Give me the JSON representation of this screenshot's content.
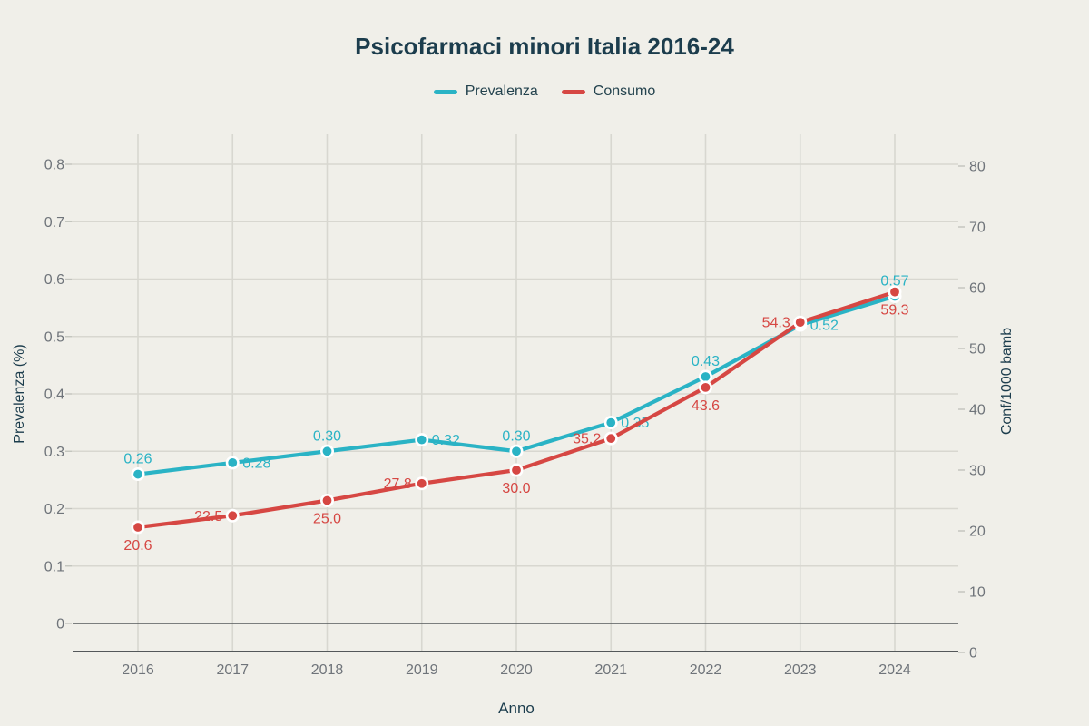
{
  "page": {
    "background_color": "#f0efe9",
    "accent_dark": "#1c3d4d",
    "tick_text_color": "#6f747a",
    "gridline_color": "#d8d7d0",
    "axis_line_color": "#54585a"
  },
  "chart_data": {
    "type": "line",
    "title": "Psicofarmaci minori Italia 2016-24",
    "xlabel": "Anno",
    "categories": [
      "2016",
      "2017",
      "2018",
      "2019",
      "2020",
      "2021",
      "2022",
      "2023",
      "2024"
    ],
    "grid": true,
    "legend_position": "top-center",
    "left_axis": {
      "label": "Prevalenza (%)",
      "range": [
        0,
        0.8
      ],
      "ticks": [
        0,
        0.1,
        0.2,
        0.3,
        0.4,
        0.5,
        0.6,
        0.7,
        0.8
      ],
      "tick_labels": [
        "0",
        "0.1",
        "0.2",
        "0.3",
        "0.4",
        "0.5",
        "0.6",
        "0.7",
        "0.8"
      ]
    },
    "right_axis": {
      "label": "Conf/1000 bamb",
      "range": [
        0,
        80
      ],
      "ticks": [
        0,
        10,
        20,
        30,
        40,
        50,
        60,
        70,
        80
      ],
      "tick_labels": [
        "0",
        "10",
        "20",
        "30",
        "40",
        "50",
        "60",
        "70",
        "80"
      ]
    },
    "series": [
      {
        "name": "Prevalenza",
        "axis": "left",
        "color": "#2ab3c5",
        "values": [
          0.26,
          0.28,
          0.3,
          0.32,
          0.3,
          0.35,
          0.43,
          0.52,
          0.57
        ],
        "point_labels": [
          "0.26",
          "0.28",
          "0.30",
          "0.32",
          "0.30",
          "0.35",
          "0.43",
          "0.52",
          "0.57"
        ]
      },
      {
        "name": "Consumo",
        "axis": "right",
        "color": "#d64743",
        "values": [
          20.6,
          22.5,
          25.0,
          27.8,
          30.0,
          35.2,
          43.6,
          54.3,
          59.3
        ],
        "point_labels": [
          "20.6",
          "22.5",
          "25.0",
          "27.8",
          "30.0",
          "35.2",
          "43.6",
          "54.3",
          "59.3"
        ]
      }
    ]
  }
}
